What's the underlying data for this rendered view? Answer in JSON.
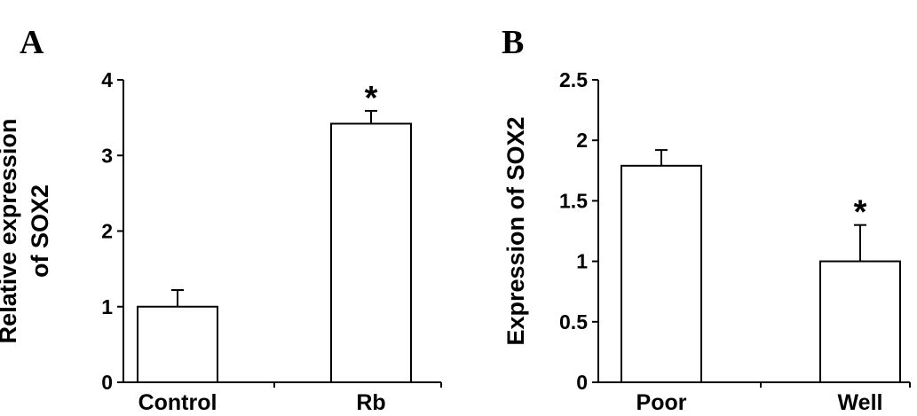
{
  "chart_data": [
    {
      "type": "bar",
      "panel_label": "A",
      "categories": [
        "Control",
        "Rb"
      ],
      "values": [
        1.0,
        3.42
      ],
      "errors": [
        0.22,
        0.17
      ],
      "annotations": [
        "",
        "*"
      ],
      "ylabel_lines": [
        "Relative expression",
        "of SOX2"
      ],
      "ylim": [
        0,
        4
      ],
      "yticks": [
        0,
        1,
        2,
        3,
        4
      ],
      "ytick_labels": [
        "0",
        "1",
        "2",
        "3",
        "4"
      ],
      "grid": false,
      "bar_fill": "#ffffff",
      "bar_edge": "#000000"
    },
    {
      "type": "bar",
      "panel_label": "B",
      "categories": [
        "Poor",
        "Well"
      ],
      "values": [
        1.79,
        1.0
      ],
      "errors": [
        0.13,
        0.3
      ],
      "annotations": [
        "",
        "*"
      ],
      "ylabel_lines": [
        "Expression of SOX2"
      ],
      "ylim": [
        0,
        2.5
      ],
      "yticks": [
        0,
        0.5,
        1,
        1.5,
        2,
        2.5
      ],
      "ytick_labels": [
        "0",
        "0.5",
        "1",
        "1.5",
        "2",
        "2.5"
      ],
      "grid": false,
      "bar_fill": "#ffffff",
      "bar_edge": "#000000"
    }
  ]
}
